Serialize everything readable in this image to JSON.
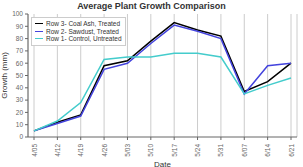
{
  "chart_data": {
    "type": "line",
    "title": "Average Plant Growth Comparison",
    "xlabel": "Date",
    "ylabel": "Growth (mm)",
    "categories": [
      "4/05",
      "4/12",
      "4/19",
      "4/26",
      "5/03",
      "5/10",
      "5/17",
      "5/24",
      "5/31",
      "6/07",
      "6/14",
      "6/21"
    ],
    "series": [
      {
        "name": "Row 3- Coal Ash, Treated",
        "color": "#000000",
        "values": [
          5,
          12,
          18,
          58,
          62,
          78,
          93,
          87,
          82,
          37,
          45,
          60
        ]
      },
      {
        "name": "Row 2- Sawdust, Treated",
        "color": "#4444dd",
        "values": [
          5,
          11,
          17,
          55,
          60,
          76,
          91,
          86,
          80,
          35,
          58,
          60
        ]
      },
      {
        "name": "Row 1- Control, Untreated",
        "color": "#44cccc",
        "values": [
          5,
          13,
          28,
          63,
          65,
          65,
          68,
          68,
          65,
          35,
          42,
          48
        ]
      }
    ],
    "ylim": [
      0,
      100
    ],
    "yticks": [
      0,
      10,
      20,
      30,
      40,
      50,
      60,
      70,
      80,
      90,
      100
    ],
    "grid": "x",
    "legend": "upper left"
  }
}
